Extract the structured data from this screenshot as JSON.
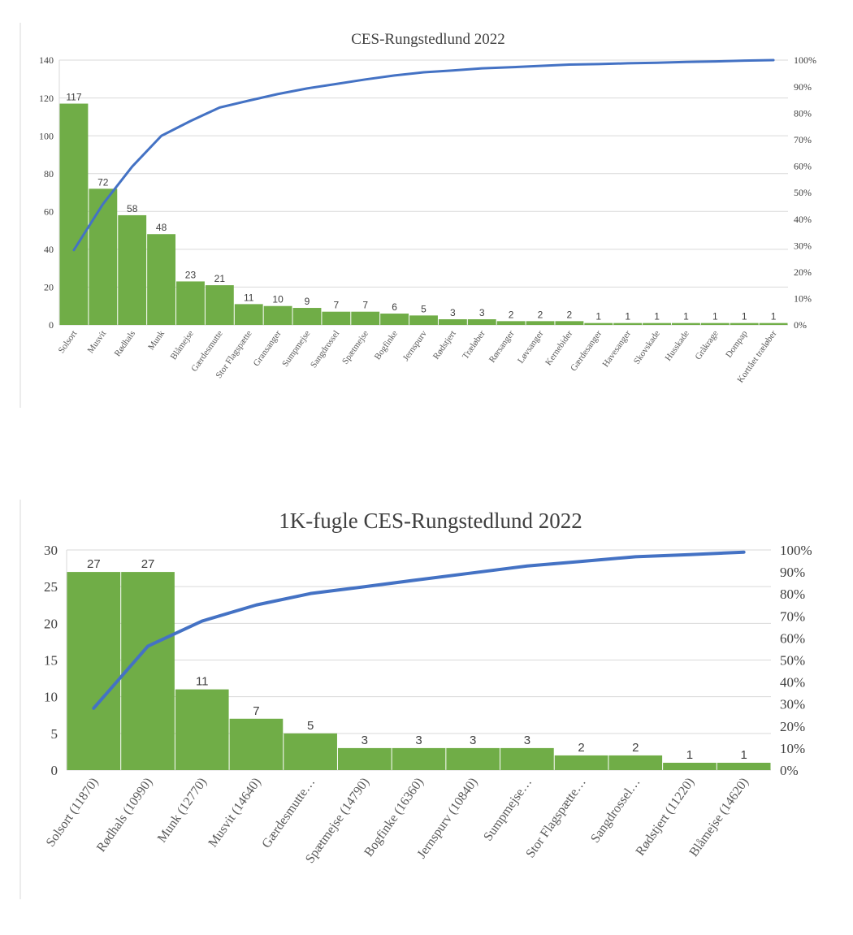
{
  "chart_data": [
    {
      "type": "bar",
      "title": "CES-Rungstedlund 2022",
      "categories": [
        "Solsort",
        "Musvit",
        "Rødhals",
        "Munk",
        "Blåmejse",
        "Gærdesmutte",
        "Stor Flagspætte",
        "Gransanger",
        "Sumpmejse",
        "Sangdrossel",
        "Spætmejse",
        "Bogfinke",
        "Jernspurv",
        "Rødstjert",
        "Træløber",
        "Rørsanger",
        "Løvsanger",
        "Kernebider",
        "Gærdesanger",
        "Havesanger",
        "Skovskade",
        "Husskade",
        "Gråkrage",
        "Dompap",
        "Korttået træløber"
      ],
      "series": [
        {
          "type": "bar",
          "values": [
            117,
            72,
            58,
            48,
            23,
            21,
            11,
            10,
            9,
            7,
            7,
            6,
            5,
            3,
            3,
            2,
            2,
            2,
            1,
            1,
            1,
            1,
            1,
            1,
            1
          ]
        },
        {
          "type": "line",
          "axis": "right",
          "values": [
            28.3,
            45.7,
            59.8,
            71.4,
            77.0,
            82.1,
            84.7,
            87.2,
            89.3,
            91.0,
            92.7,
            94.2,
            95.4,
            96.1,
            96.9,
            97.3,
            97.8,
            98.3,
            98.5,
            98.8,
            99.0,
            99.3,
            99.5,
            99.8,
            100
          ]
        }
      ],
      "ylim": [
        0,
        140
      ],
      "yticks": [
        0,
        20,
        40,
        60,
        80,
        100,
        120,
        140
      ],
      "y2lim": [
        0,
        100
      ],
      "y2ticks": [
        "0%",
        "10%",
        "20%",
        "30%",
        "40%",
        "50%",
        "60%",
        "70%",
        "80%",
        "90%",
        "100%"
      ],
      "colors": {
        "bar": "#70ad47",
        "line": "#4472c4"
      }
    },
    {
      "type": "bar",
      "title": "1K-fugle CES-Rungstedlund 2022",
      "categories": [
        "Solsort (11870)",
        "Rødhals (10990)",
        "Munk (12770)",
        "Musvit (14640)",
        "Gærdesmutte…",
        "Spætmejse (14790)",
        "Bogfinke (16360)",
        "Jernspurv (10840)",
        "Sumpmejse…",
        "Stor Flagspætte…",
        "Sangdrossel…",
        "Rødstjert (11220)",
        "Blåmejse (14620)"
      ],
      "series": [
        {
          "type": "bar",
          "values": [
            27,
            27,
            11,
            7,
            5,
            3,
            3,
            3,
            3,
            2,
            2,
            1,
            1
          ]
        },
        {
          "type": "line",
          "axis": "right",
          "values": [
            28.1,
            56.3,
            67.7,
            75.0,
            80.2,
            83.3,
            86.5,
            89.6,
            92.7,
            94.8,
            96.9,
            97.9,
            99.0
          ]
        }
      ],
      "ylim": [
        0,
        30
      ],
      "yticks": [
        0,
        5,
        10,
        15,
        20,
        25,
        30
      ],
      "y2lim": [
        0,
        100
      ],
      "y2ticks": [
        "0%",
        "10%",
        "20%",
        "30%",
        "40%",
        "50%",
        "60%",
        "70%",
        "80%",
        "90%",
        "100%"
      ],
      "colors": {
        "bar": "#70ad47",
        "line": "#4472c4"
      }
    }
  ]
}
